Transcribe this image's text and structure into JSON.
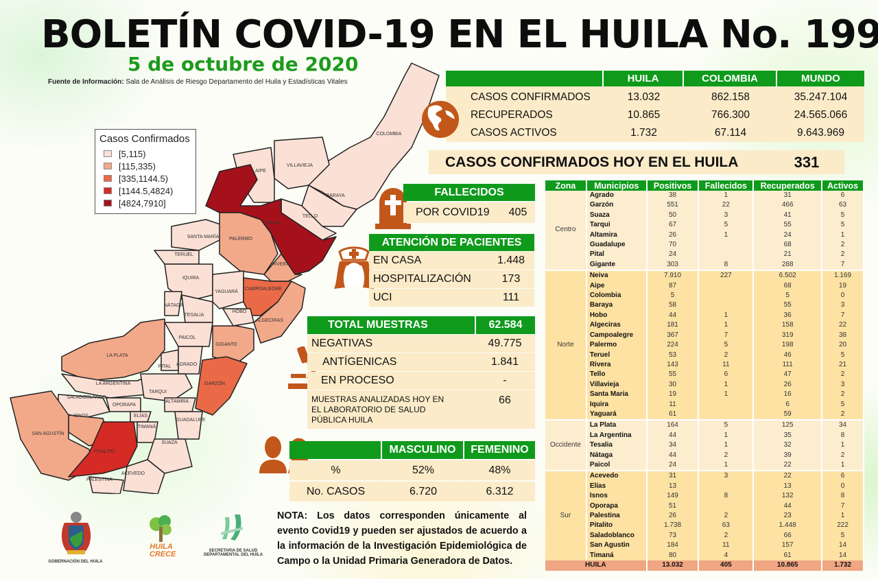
{
  "header": {
    "title": "BOLETÍN COVID-19 EN EL HUILA No. 199",
    "date": "5 de octubre de 2020",
    "source_label": "Fuente de Información:",
    "source_text": "Sala de Análisis de Riesgo Departamento del Huila y Estadísticas Vitales"
  },
  "legend": {
    "title": "Casos Confirmados",
    "items": [
      {
        "label": "[5,115)",
        "color": "#fbe0d6"
      },
      {
        "label": "[115,335)",
        "color": "#f2a98a"
      },
      {
        "label": "[335,1144.5)",
        "color": "#ea6a48"
      },
      {
        "label": "[1144.5,4824)",
        "color": "#d52b25"
      },
      {
        "label": "[4824,7910]",
        "color": "#a5111b"
      }
    ]
  },
  "map_labels": {
    "colombia": "COLOMBIA",
    "villavieja": "VILLAVIEJA",
    "baraya": "BARAYA",
    "tello": "TELLO",
    "aipe": "AIPE",
    "neiva": "NEIVA",
    "santa_maria": "SANTA MARÍA",
    "palermo": "PALERMO",
    "teruel": "TERUEL",
    "rivera": "RIVERA",
    "iquira": "IQUIRA",
    "campoalegre": "CAMPOALEGRE",
    "yaguara": "YAGUARÁ",
    "nataga": "NÁTAGA",
    "tesalia": "TESALIA",
    "hobo": "HOBO",
    "algeciras": "ALGECIRAS",
    "paicol": "PAICOL",
    "gigante": "GIGANTE",
    "la_plata": "LA PLATA",
    "pital": "PITAL",
    "agrado": "AGRADO",
    "la_argentina": "LA ARGENTINA",
    "tarqui": "TARQUI",
    "garzon": "GARZÓN",
    "saladoblanco": "SALADOBLANCO",
    "oporapa": "OPORAPA",
    "altamira": "ALTAMIRA",
    "isnos": "ISNOS",
    "elias": "ELÍAS",
    "guadalupe": "GUADALUPE",
    "san_agustin": "SAN AGUSTÍN",
    "timana": "TIMANÁ",
    "suaza": "SUAZA",
    "pitalito": "PITALITO",
    "acevedo": "ACEVEDO",
    "palestina": "PALESTINA"
  },
  "summary": {
    "columns": [
      "HUILA",
      "COLOMBIA",
      "MUNDO"
    ],
    "rows": [
      {
        "label": "CASOS CONFIRMADOS",
        "values": [
          "13.032",
          "862.158",
          "35.247.104"
        ]
      },
      {
        "label": "RECUPERADOS",
        "values": [
          "10.865",
          "766.300",
          "24.565.066"
        ]
      },
      {
        "label": "CASOS ACTIVOS",
        "values": [
          "1.732",
          "67.114",
          "9.643.969"
        ]
      }
    ]
  },
  "hoy": {
    "label": "CASOS CONFIRMADOS  HOY EN EL HUILA",
    "value": "331"
  },
  "fallecidos": {
    "title": "FALLECIDOS",
    "label": "POR COVID19",
    "value": "405"
  },
  "atencion": {
    "title": "ATENCIÓN DE PACIENTES",
    "rows": [
      {
        "label": "EN CASA",
        "value": "1.448"
      },
      {
        "label": "HOSPITALIZACIÓN",
        "value": "173"
      },
      {
        "label": "UCI",
        "value": "111"
      }
    ]
  },
  "muestras": {
    "title": "TOTAL MUESTRAS",
    "total": "62.584",
    "rows": [
      {
        "label": "NEGATIVAS",
        "value": "49.775"
      },
      {
        "label": "ANTÍGENICAS",
        "value": "1.841"
      },
      {
        "label": "EN PROCESO",
        "value": "-"
      },
      {
        "label": "MUESTRAS ANALIZADAS HOY EN EL LABORATORIO DE SALUD PÚBLICA HUILA",
        "value": "66"
      }
    ]
  },
  "sexo": {
    "columns": [
      "MASCULINO",
      "FEMENINO"
    ],
    "rows": [
      {
        "label": "%",
        "values": [
          "52%",
          "48%"
        ]
      },
      {
        "label": "No. CASOS",
        "values": [
          "6.720",
          "6.312"
        ]
      }
    ]
  },
  "nota": "NOTA: Los datos corresponden únicamente al evento Covid19 y pueden ser ajustados de acuerdo a la información de la Investigación Epidemiológica de Campo o la Unidad Primaria Generadora de Datos.",
  "logos": {
    "gobernacion": "GOBERNACIÓN DEL HUILA",
    "huila_crece_1": "HUILA",
    "huila_crece_2": "CRECE",
    "secretaria_1": "SECRETARIA DE SALUD",
    "secretaria_2": "DEPARTAMENTAL DEL HUILA"
  },
  "municipios": {
    "columns": [
      "Zona",
      "Municipios",
      "Positivos",
      "Fallecidos",
      "Recuperados",
      "Activos"
    ],
    "zones": [
      {
        "name": "Centro",
        "rows": [
          [
            "Agrado",
            "38",
            "1",
            "31",
            "6"
          ],
          [
            "Garzón",
            "551",
            "22",
            "466",
            "63"
          ],
          [
            "Suaza",
            "50",
            "3",
            "41",
            "5"
          ],
          [
            "Tarqui",
            "67",
            "5",
            "55",
            "5"
          ],
          [
            "Altamira",
            "26",
            "1",
            "24",
            "1"
          ],
          [
            "Guadalupe",
            "70",
            "",
            "68",
            "2"
          ],
          [
            "Pital",
            "24",
            "",
            "21",
            "2"
          ],
          [
            "Gigante",
            "303",
            "8",
            "288",
            "7"
          ]
        ]
      },
      {
        "name": "Norte",
        "rows": [
          [
            "Neiva",
            "7.910",
            "227",
            "6.502",
            "1.169"
          ],
          [
            "Aipe",
            "87",
            "",
            "68",
            "19"
          ],
          [
            "Colombia",
            "5",
            "",
            "5",
            "0"
          ],
          [
            "Baraya",
            "58",
            "",
            "55",
            "3"
          ],
          [
            "Hobo",
            "44",
            "1",
            "36",
            "7"
          ],
          [
            "Algeciras",
            "181",
            "1",
            "158",
            "22"
          ],
          [
            "Campoalegre",
            "367",
            "7",
            "319",
            "38"
          ],
          [
            "Palermo",
            "224",
            "5",
            "198",
            "20"
          ],
          [
            "Teruel",
            "53",
            "2",
            "46",
            "5"
          ],
          [
            "Rivera",
            "143",
            "11",
            "111",
            "21"
          ],
          [
            "Tello",
            "55",
            "6",
            "47",
            "2"
          ],
          [
            "Villavieja",
            "30",
            "1",
            "26",
            "3"
          ],
          [
            "Santa Maria",
            "19",
            "1",
            "16",
            "2"
          ],
          [
            "Iquira",
            "11",
            "",
            "6",
            "5"
          ],
          [
            "Yaguará",
            "61",
            "",
            "59",
            "2"
          ]
        ]
      },
      {
        "name": "Occidente",
        "rows": [
          [
            "La Plata",
            "164",
            "5",
            "125",
            "34"
          ],
          [
            "La Argentina",
            "44",
            "1",
            "35",
            "8"
          ],
          [
            "Tesalia",
            "34",
            "1",
            "32",
            "1"
          ],
          [
            "Nátaga",
            "44",
            "2",
            "39",
            "2"
          ],
          [
            "Paicol",
            "24",
            "1",
            "22",
            "1"
          ]
        ]
      },
      {
        "name": "Sur",
        "rows": [
          [
            "Acevedo",
            "31",
            "3",
            "22",
            "6"
          ],
          [
            "Elías",
            "13",
            "",
            "13",
            "0"
          ],
          [
            "Isnos",
            "149",
            "8",
            "132",
            "8"
          ],
          [
            "Oporapa",
            "51",
            "",
            "44",
            "7"
          ],
          [
            "Palestina",
            "26",
            "2",
            "23",
            "1"
          ],
          [
            "Pitalito",
            "1.738",
            "63",
            "1.448",
            "222"
          ],
          [
            "Saladoblanco",
            "73",
            "2",
            "66",
            "5"
          ],
          [
            "San Agustin",
            "184",
            "11",
            "157",
            "14"
          ],
          [
            "Timaná",
            "80",
            "4",
            "61",
            "14"
          ]
        ]
      }
    ],
    "total": {
      "label": "HUILA",
      "values": [
        "13.032",
        "405",
        "10.865",
        "1.732"
      ]
    }
  },
  "colors": {
    "green": "#0f9a1c",
    "cream": "#fcebc9",
    "orange_icon": "#c1571a",
    "total_row": "#f0a583"
  }
}
